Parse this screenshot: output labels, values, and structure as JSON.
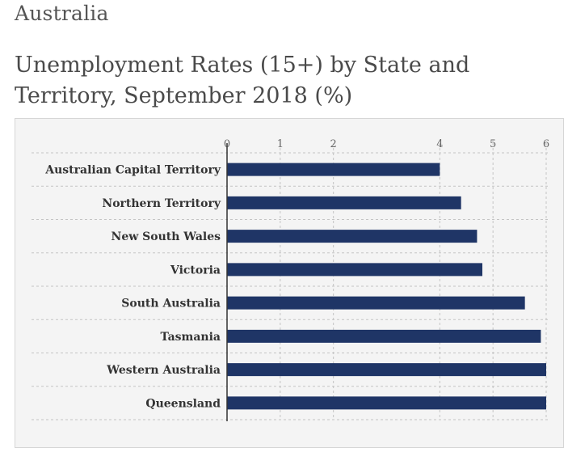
{
  "page": {
    "country": "Australia",
    "headline": "Unemployment Rates (15+) by State and Territory, September 2018 (%)"
  },
  "colors": {
    "bar": "#1f3566",
    "grid": "#c4c4c4",
    "background": "#f4f4f4"
  },
  "chart_data": {
    "type": "bar",
    "orientation": "horizontal",
    "title": "Unemployment Rates (15+) by State and Territory, September 2018 (%)",
    "xlabel": "",
    "ylabel": "",
    "categories": [
      "Australian Capital Territory",
      "Northern Territory",
      "New South Wales",
      "Victoria",
      "South Australia",
      "Tasmania",
      "Western Australia",
      "Queensland"
    ],
    "values": [
      4.0,
      4.4,
      4.7,
      4.8,
      5.6,
      5.9,
      6.1,
      6.1
    ],
    "xlim": [
      0,
      6
    ],
    "ticks": [
      "0",
      "1",
      "2",
      "4",
      "5",
      "6"
    ],
    "tick_values": [
      0,
      1,
      2,
      4,
      5,
      6
    ],
    "grid": true,
    "legend": "none"
  }
}
